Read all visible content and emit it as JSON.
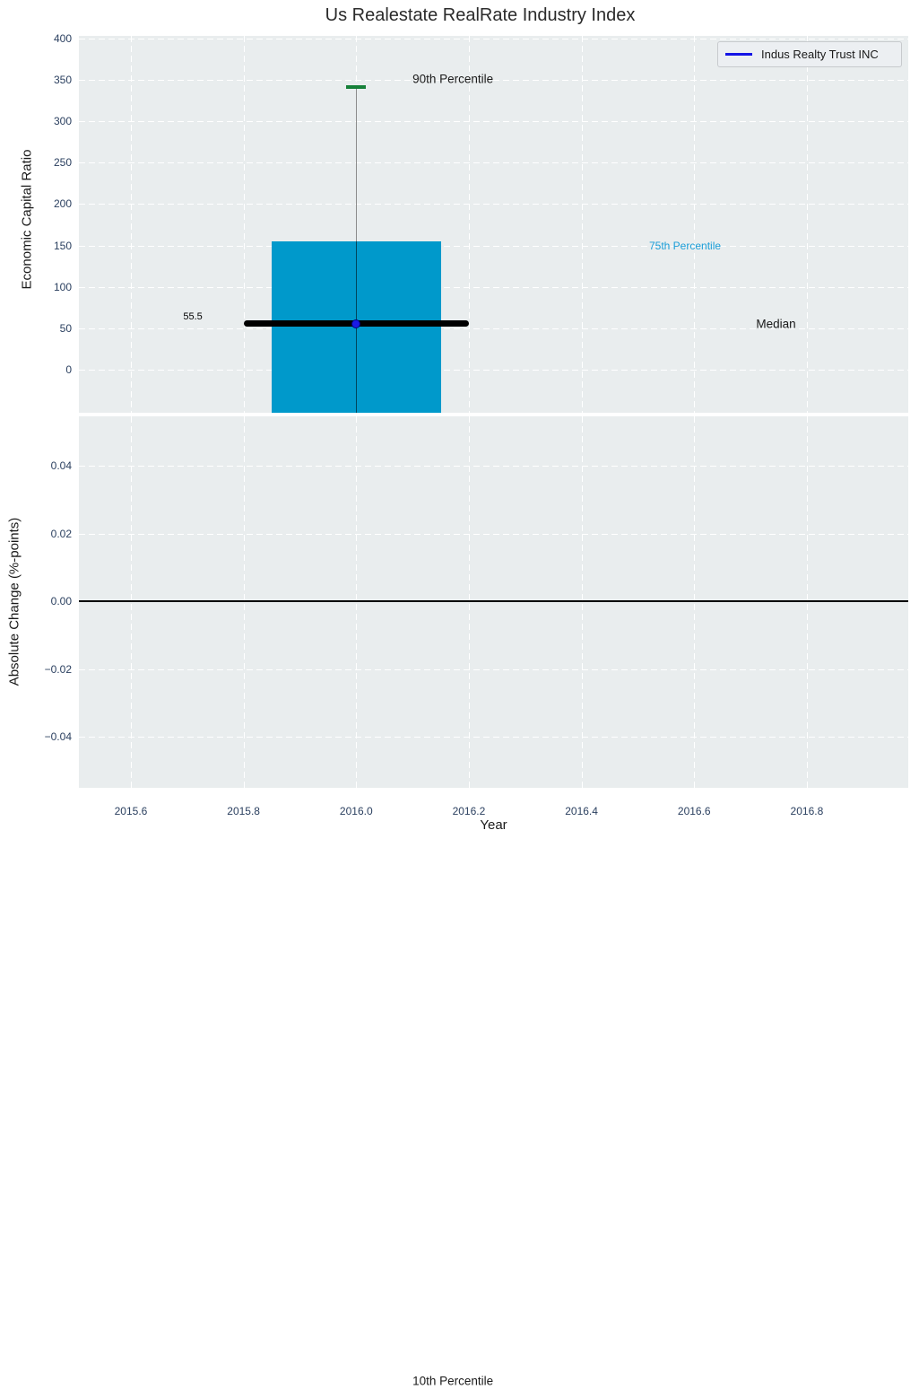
{
  "figure": {
    "title": "Us Realestate RealRate Industry Index",
    "background": "#ffffff",
    "panel_background": "#e9edee",
    "grid_color": "#ffffff",
    "tick_color": "#2a3f5f",
    "label_color": "#1a1a1a"
  },
  "legend": {
    "label": "Indus Realty Trust INC",
    "line_color": "#1414e6"
  },
  "chart_data": [
    {
      "type": "bar",
      "title": "Us Realestate RealRate Industry Index",
      "xlabel": "Year",
      "ylabel": "Economic Capital Ratio",
      "xlim": [
        2015.5077,
        2016.98
      ],
      "ylim": [
        -52,
        403
      ],
      "xtick_values": [
        2015.6,
        2015.8,
        2016.0,
        2016.2,
        2016.4,
        2016.6,
        2016.8
      ],
      "xtick_labels": [
        "2015.6",
        "2015.8",
        "2016.0",
        "2016.2",
        "2016.4",
        "2016.6",
        "2016.8"
      ],
      "ytick_values": [
        400,
        350,
        300,
        250,
        200,
        150,
        100,
        50,
        0
      ],
      "ytick_labels": [
        "400",
        "350",
        "300",
        "250",
        "200",
        "150",
        "100",
        "50",
        "0"
      ],
      "grid": {
        "style": "dashed",
        "color": "#ffffff"
      },
      "series": [
        {
          "name": "Indus Realty Trust INC",
          "x": 2016.0,
          "p90": 341,
          "p75": 155,
          "median": 55.5,
          "p10": -1220,
          "bar_width": 0.3,
          "median_line_width": 0.4,
          "bar_color": "#0099cb",
          "whisker_color": "#8c8c8c",
          "cap_color": "#168039",
          "median_color": "#000000",
          "marker_color": "#1a1ae6"
        }
      ],
      "annotations": [
        {
          "text": "90th Percentile",
          "x": 2016.1,
          "y": 351,
          "ha": "left",
          "color": "#1a1a1a",
          "size": 13.5
        },
        {
          "text": "75th Percentile",
          "x": 2016.52,
          "y": 149,
          "ha": "left",
          "color": "#1b9ed8",
          "size": 12
        },
        {
          "text": "Median",
          "x": 2016.71,
          "y": 55.5,
          "ha": "left",
          "color": "#1a1a1a",
          "size": 13.5
        },
        {
          "text": "55.5",
          "x": 2015.71,
          "y": 64,
          "ha": "center",
          "color": "#000000",
          "size": 11
        },
        {
          "text": "10th Percentile",
          "x": 2016.1,
          "y": -1221,
          "ha": "left",
          "color": "#1a1a1a",
          "size": 13.5
        }
      ]
    },
    {
      "type": "line",
      "ylabel": "Absolute Change (%-points)",
      "ylim": [
        -0.0551,
        0.0546
      ],
      "ytick_values": [
        0.04,
        0.02,
        0.0,
        -0.02,
        -0.04
      ],
      "ytick_labels": [
        "0.04",
        "0.02",
        "0.00",
        "−0.02",
        "−0.04"
      ],
      "grid": {
        "style": "dashed",
        "color": "#ffffff"
      },
      "zero_line": {
        "y": 0.0,
        "color": "#000000"
      },
      "series": []
    }
  ]
}
